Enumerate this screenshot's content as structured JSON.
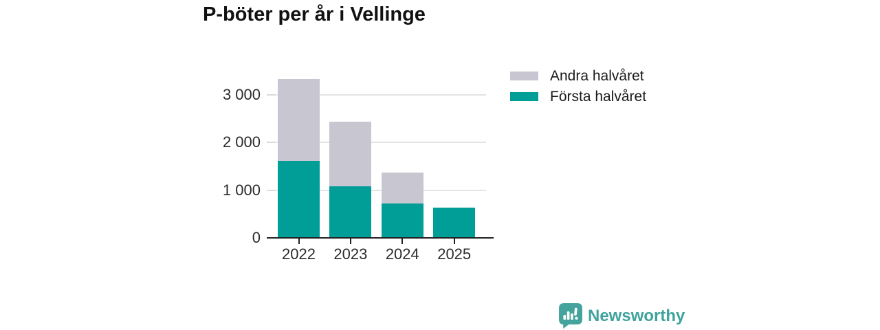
{
  "chart_data": {
    "type": "bar",
    "stacked": true,
    "title": "P-böter per år i Vellinge",
    "categories": [
      "2022",
      "2023",
      "2024",
      "2025"
    ],
    "series": [
      {
        "name": "Första halvåret",
        "color": "#009e96",
        "values": [
          1620,
          1080,
          720,
          640
        ]
      },
      {
        "name": "Andra halvåret",
        "color": "#c8c6d0",
        "values": [
          1710,
          1360,
          650,
          0
        ]
      }
    ],
    "legend_order": [
      "Andra halvåret",
      "Första halvåret"
    ],
    "legend_position": "right-top",
    "yticks": [
      {
        "value": 0,
        "label": "0"
      },
      {
        "value": 1000,
        "label": "1 000"
      },
      {
        "value": 2000,
        "label": "2 000"
      },
      {
        "value": 3000,
        "label": "3 000"
      }
    ],
    "ylim": [
      0,
      3480
    ],
    "xlabel": "",
    "ylabel": "",
    "grid": "horizontal"
  },
  "footer": {
    "brand": "Newsworthy",
    "brand_color": "#3fa39d",
    "logo_icon": "newsworthy-speech-bubble-bar-chart-icon"
  }
}
